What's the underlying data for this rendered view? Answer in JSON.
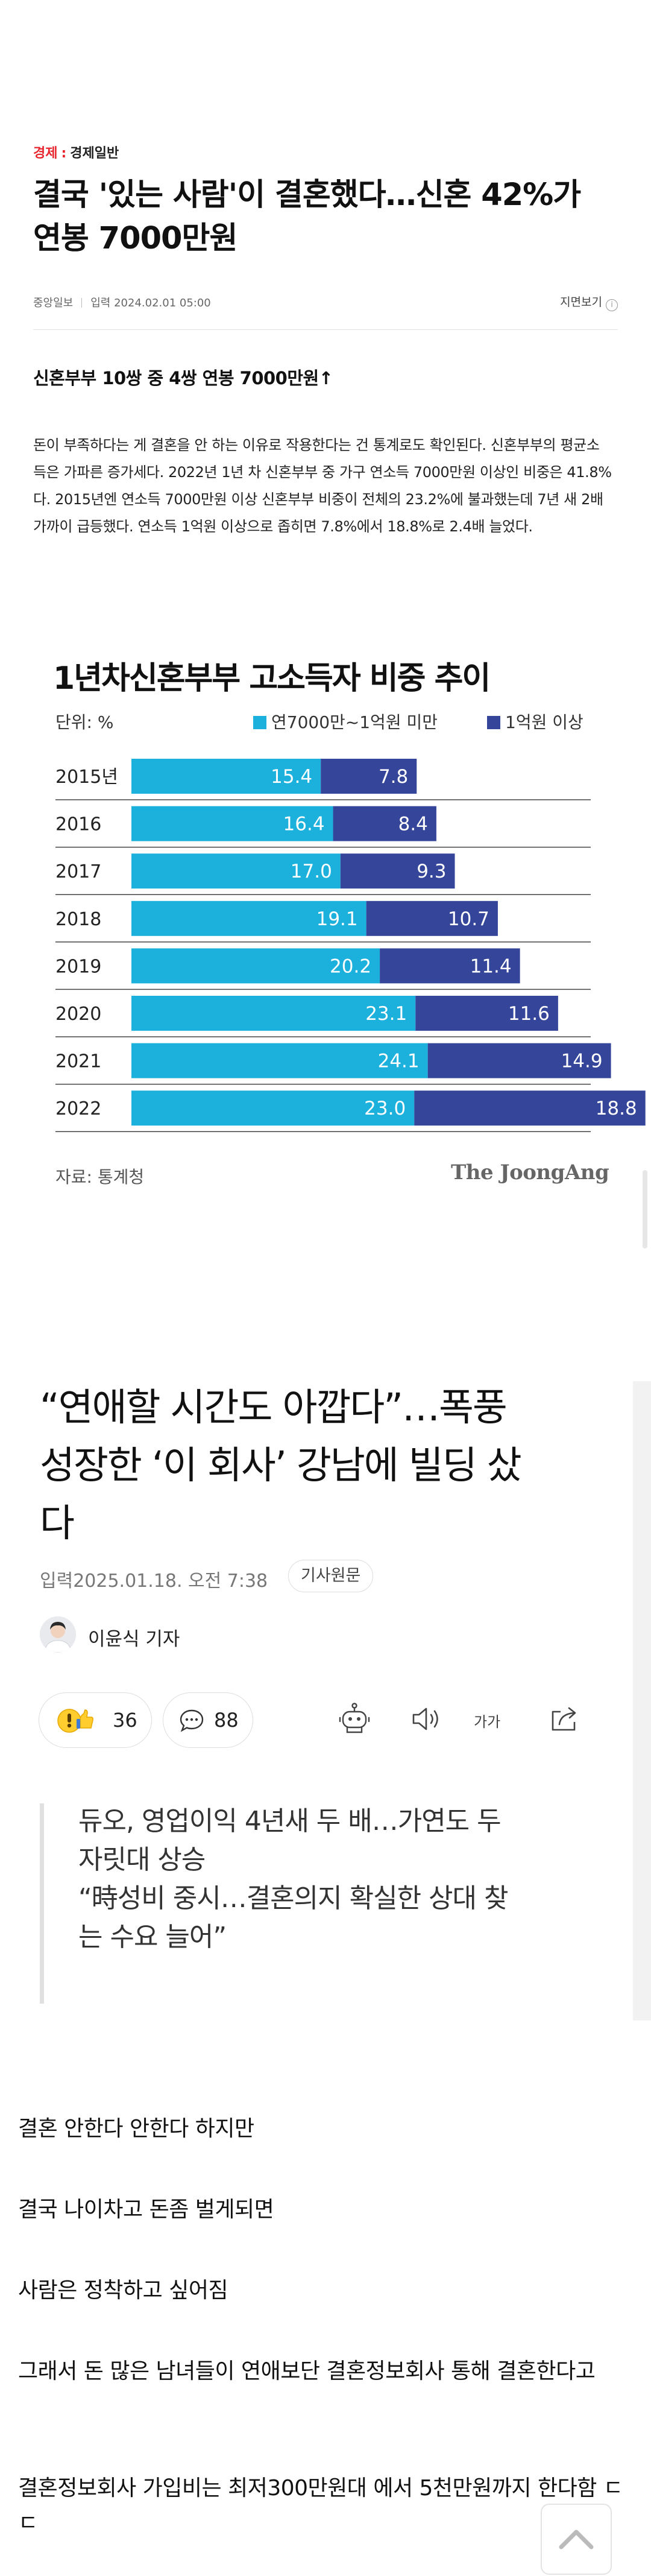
{
  "article1": {
    "section": "경제",
    "subsection": "경제일반",
    "title": "결국 '있는 사람'이 결혼했다…신혼 42%가 연봉 7000만원",
    "publisher": "중앙일보",
    "date": "입력 2024.02.01 05:00",
    "print_label": "지면보기",
    "info_icon": "i",
    "subhead": "신혼부부 10쌍 중 4쌍 연봉 7000만원↑",
    "body": "돈이 부족하다는 게 결혼을 안 하는 이유로 작용한다는 건 통계로도 확인된다. 신혼부부의 평균소득은 가파른 증가세다. 2022년 1년 차 신혼부부 중 가구 연소득 7000만원 이상인 비중은 41.8%다. 2015년엔 연소득 7000만원 이상 신혼부부 비중이 전체의 23.2%에 불과했는데 7년 새 2배 가까이 급등했다. 연소득 1억원 이상으로 좁히면 7.8%에서 18.8%로 2.4배 늘었다."
  },
  "chart_data": {
    "type": "bar",
    "orientation": "horizontal",
    "stacked": true,
    "title": "1년차신혼부부 고소득자 비중 추이",
    "unit": "단위: %",
    "categories": [
      "2015년",
      "2016",
      "2017",
      "2018",
      "2019",
      "2020",
      "2021",
      "2022"
    ],
    "series": [
      {
        "name": "연7000만~1억원 미만",
        "color": "#1bb1dc",
        "values": [
          15.4,
          16.4,
          17.0,
          19.1,
          20.2,
          23.1,
          24.1,
          23.0
        ]
      },
      {
        "name": "1억원 이상",
        "color": "#35469a",
        "values": [
          7.8,
          8.4,
          9.3,
          10.7,
          11.4,
          11.6,
          14.9,
          18.8
        ]
      }
    ],
    "data_labels": [
      [
        "15.4",
        "16.4",
        "17.0",
        "19.1",
        "20.2",
        "23.1",
        "24.1",
        "23.0"
      ],
      [
        "7.8",
        "8.4",
        "9.3",
        "10.7",
        "11.4",
        "11.6",
        "14.9",
        "18.8"
      ]
    ],
    "source": "자료: 통계청",
    "brand": "The JoongAng",
    "legend_position": "top-right",
    "grid": false
  },
  "article2": {
    "title_lines": [
      "“연애할 시간도 아깝다”…폭풍",
      "성장한 ‘이 회사’ 강남에 빌딩 샀",
      "다"
    ],
    "date": "입력2025.01.18. 오전 7:38",
    "origin_button": "기사원문",
    "reporter": "이윤식 기자",
    "like_count": "36",
    "comment_count": "88",
    "font_label": "가가",
    "quote_lines": [
      "듀오, 영업이익 4년새 두 배…가연도 두",
      "자릿대 상승",
      "“時성비 중시…결혼의지 확실한 상대 찾",
      "는 수요 늘어”"
    ]
  },
  "community": {
    "paragraphs": [
      "결혼 안한다 안한다 하지만",
      "결국 나이차고 돈좀 벌게되면",
      "사람은 정착하고 싶어짐",
      "그래서 돈 많은 남녀들이 연애보단 결혼정보회사 통해 결혼한다고",
      "결혼정보회사 가입비는 최저300만원대 에서 5천만원까지 한다함 ㄷㄷ"
    ]
  },
  "icons": {
    "like": "emoji-reaction-icon",
    "comment": "comment-icon",
    "bot": "summary-bot-icon",
    "speaker": "speaker-icon",
    "share": "share-icon",
    "scroll_top": "chevron-up-icon"
  }
}
